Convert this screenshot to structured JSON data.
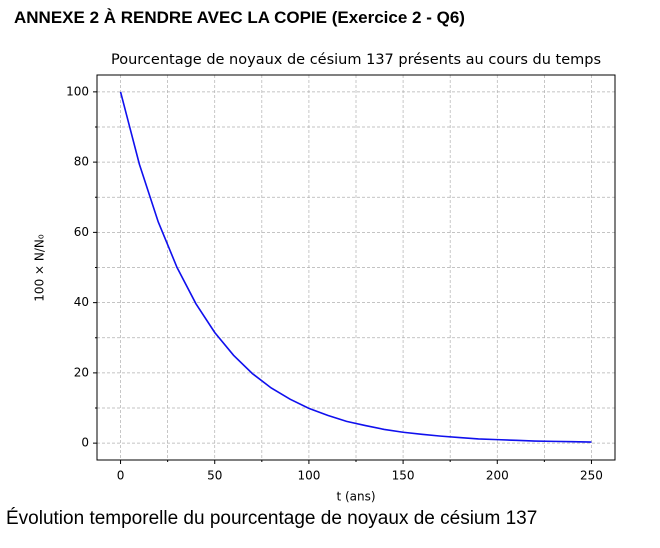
{
  "header": "ANNEXE 2 À RENDRE AVEC LA COPIE (Exercice 2 - Q6)",
  "caption": "Évolution temporelle du pourcentage de noyaux de césium 137",
  "chart_data": {
    "type": "line",
    "title": "Pourcentage de noyaux de césium 137 présents au cours du temps",
    "xlabel": "t (ans)",
    "ylabel": "100 × N/N₀",
    "x": [
      0,
      10,
      20,
      30,
      40,
      50,
      60,
      70,
      80,
      90,
      100,
      110,
      120,
      130,
      140,
      150,
      160,
      170,
      180,
      190,
      200,
      210,
      220,
      230,
      240,
      250
    ],
    "series": [
      {
        "color": "#1010ee",
        "values": [
          100,
          79.4,
          63,
          50,
          39.7,
          31.5,
          25,
          19.8,
          15.7,
          12.5,
          9.9,
          7.9,
          6.2,
          5,
          3.9,
          3.1,
          2.5,
          2,
          1.6,
          1.2,
          1,
          0.8,
          0.6,
          0.5,
          0.4,
          0.3
        ]
      }
    ],
    "xlim": [
      -12.5,
      262.5
    ],
    "ylim": [
      -4.8,
      104.8
    ],
    "xticks": [
      0,
      50,
      100,
      150,
      200,
      250
    ],
    "yticks": [
      0,
      20,
      40,
      60,
      80,
      100
    ],
    "xminorticks": [
      25,
      75,
      125,
      175,
      225
    ],
    "yminorticks": [
      10,
      30,
      50,
      70,
      90
    ],
    "grid": true
  }
}
